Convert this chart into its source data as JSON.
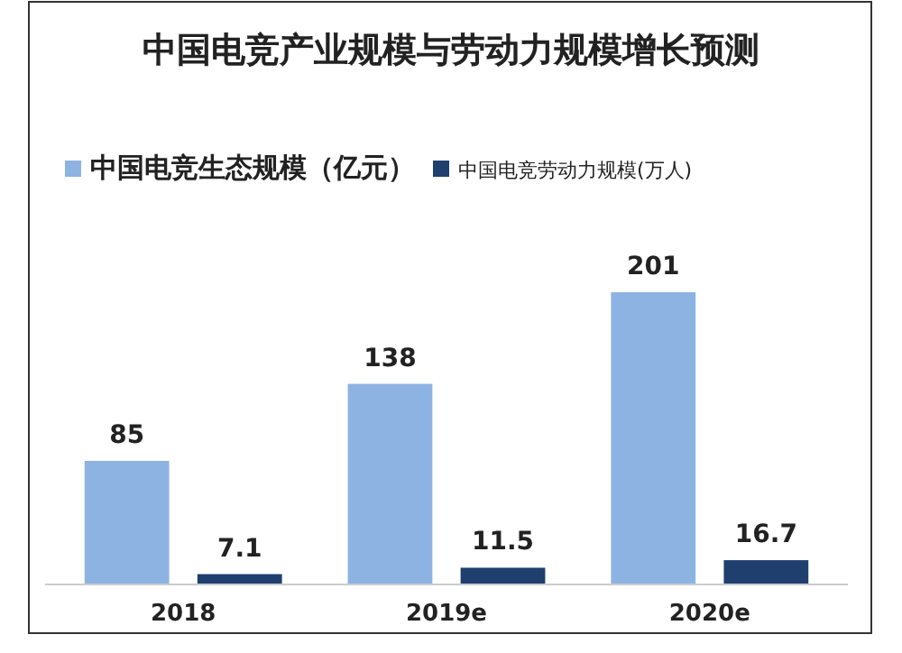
{
  "chart_data": {
    "type": "bar",
    "title": "中国电竞产业规模与劳动力规模增长预测",
    "categories": [
      "2018",
      "2019e",
      "2020e"
    ],
    "series": [
      {
        "name": "中国电竞生态规模（亿元）",
        "color": "#8db3e2",
        "values": [
          85,
          138,
          201
        ]
      },
      {
        "name": "中国电竞劳动力规模(万人)",
        "color": "#1f3f6e",
        "values": [
          7.1,
          11.5,
          16.7
        ]
      }
    ],
    "data_labels": true,
    "legend": "top left",
    "grid": false
  }
}
